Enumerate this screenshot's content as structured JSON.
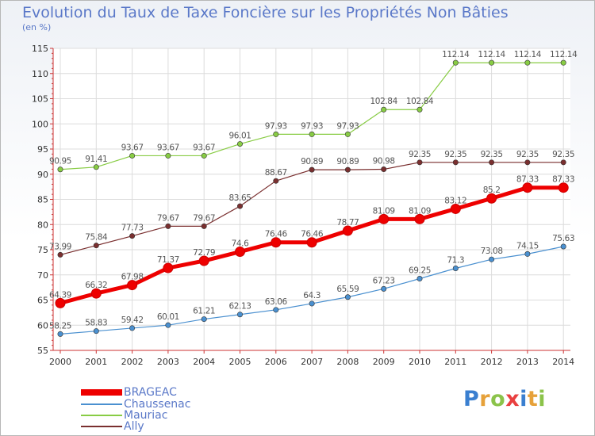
{
  "title": "Evolution du Taux de Taxe Foncière sur les Propriétés Non Bâties",
  "unit_label": "(en %)",
  "brand": "Proxiti",
  "chart_data": {
    "type": "line",
    "title": "Evolution du Taux de Taxe Foncière sur les Propriétés Non Bâties",
    "ylabel": "(en %)",
    "xlabel": "",
    "ylim": [
      55,
      115
    ],
    "yticks": [
      55,
      60,
      65,
      70,
      75,
      80,
      85,
      90,
      95,
      100,
      105,
      110,
      115
    ],
    "grid": true,
    "legend_position": "bottom-left",
    "x": [
      "2000",
      "2001",
      "2002",
      "2003",
      "2004",
      "2005",
      "2006",
      "2007",
      "2008",
      "2009",
      "2010",
      "2011",
      "2012",
      "2013",
      "2014"
    ],
    "series": [
      {
        "name": "BRAGEAC",
        "color": "#ee0000",
        "values": [
          64.39,
          66.32,
          67.98,
          71.37,
          72.79,
          74.6,
          76.46,
          76.46,
          78.77,
          81.09,
          81.09,
          83.12,
          85.2,
          87.33,
          87.33
        ],
        "labels": [
          "64.39",
          "66.32",
          "67.98",
          "71.37",
          "72.79",
          "74.6",
          "76.46",
          "76.46",
          "78.77",
          "81.09",
          "81.09",
          "83.12",
          "85.2",
          "87.33",
          "87.33"
        ]
      },
      {
        "name": "Chaussenac",
        "color": "#4a90d0",
        "values": [
          58.25,
          58.83,
          59.42,
          60.01,
          61.21,
          62.13,
          63.06,
          64.3,
          65.59,
          67.23,
          69.25,
          71.3,
          73.08,
          74.15,
          75.63
        ],
        "labels": [
          "58.25",
          "58.83",
          "59.42",
          "60.01",
          "61.21",
          "62.13",
          "63.06",
          "64.3",
          "65.59",
          "67.23",
          "69.25",
          "71.3",
          "73.08",
          "74.15",
          "75.63"
        ]
      },
      {
        "name": "Mauriac",
        "color": "#88cc44",
        "values": [
          90.95,
          91.41,
          93.67,
          93.67,
          93.67,
          96.01,
          97.93,
          97.93,
          97.93,
          102.84,
          102.84,
          112.14,
          112.14,
          112.14,
          112.14
        ],
        "labels": [
          "90.95",
          "91.41",
          "93.67",
          "93.67",
          "93.67",
          "96.01",
          "97.93",
          "97.93",
          "97.93",
          "102.84",
          "102.84",
          "112.14",
          "112.14",
          "112.14",
          "112.14"
        ]
      },
      {
        "name": "Ally",
        "color": "#7a2f2f",
        "values": [
          73.99,
          75.84,
          77.73,
          79.67,
          79.67,
          83.65,
          88.67,
          90.89,
          90.89,
          90.98,
          92.35,
          92.35,
          92.35,
          92.35,
          92.35
        ],
        "labels": [
          "73.99",
          "75.84",
          "77.73",
          "79.67",
          "79.67",
          "83.65",
          "88.67",
          "90.89",
          "90.89",
          "90.98",
          "92.35",
          "92.35",
          "92.35",
          "92.35",
          "92.35"
        ]
      }
    ]
  }
}
